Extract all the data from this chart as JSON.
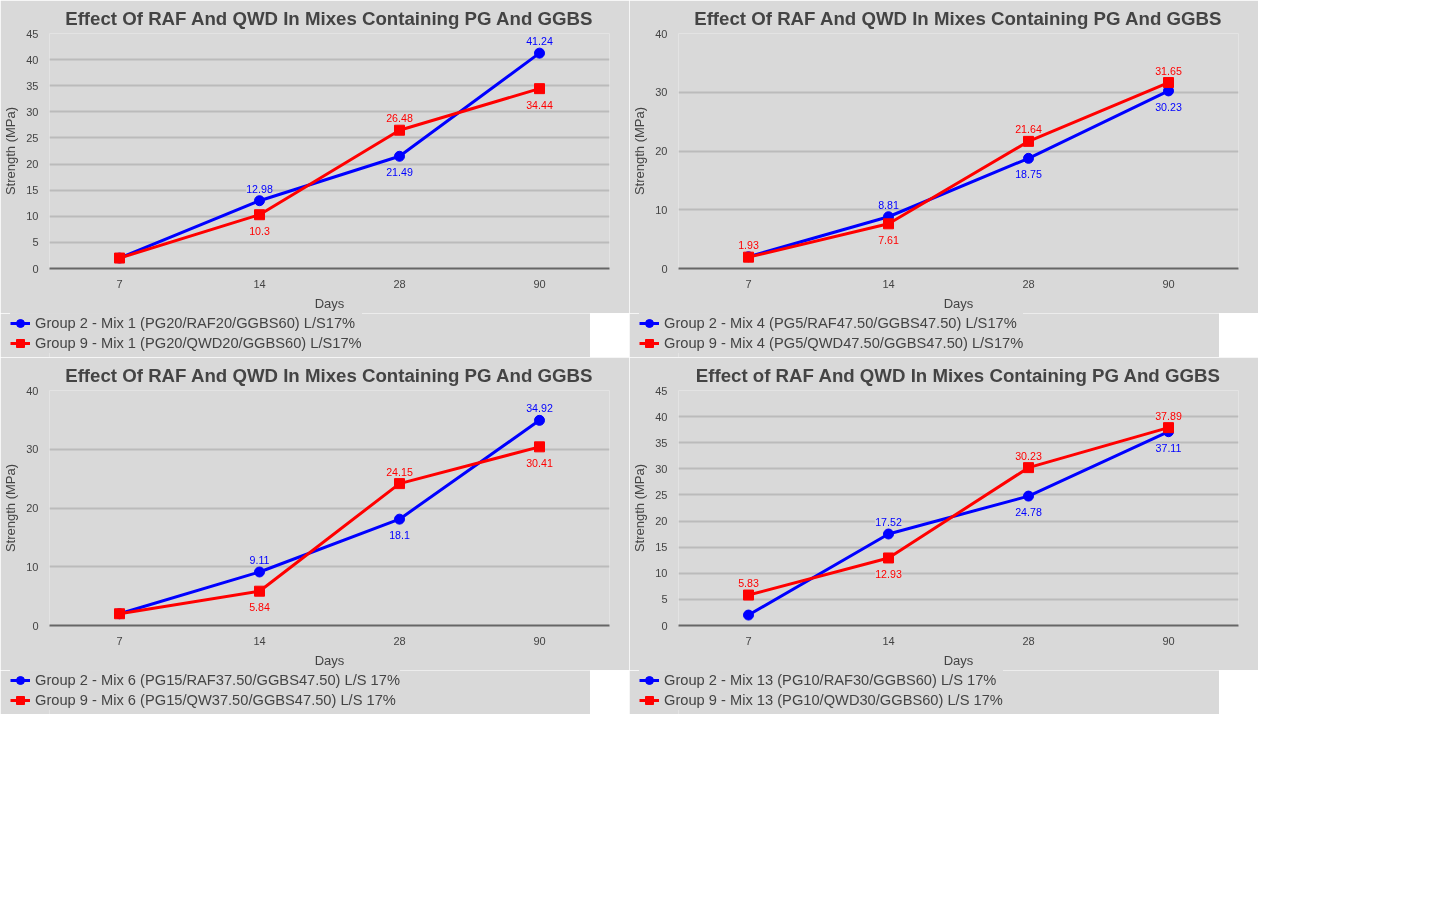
{
  "chart_data": [
    {
      "type": "line",
      "title": "Effect Of RAF And QWD In Mixes Containing PG And GGBS",
      "xlabel": "Days",
      "ylabel": "Strength (MPa)",
      "categories": [
        "7",
        "14",
        "28",
        "90"
      ],
      "ylim": [
        0,
        45
      ],
      "yticks": [
        0,
        5,
        10,
        15,
        20,
        25,
        30,
        35,
        40,
        45
      ],
      "grid": "y",
      "legend": "bottom",
      "series": [
        {
          "name": "Group 2 - Mix 1 (PG20/RAF20/GGBS60) L/S17%",
          "color": "#0000ff",
          "marker": "circle",
          "values": [
            2,
            12.98,
            21.49,
            41.24
          ],
          "value_labels": [
            null,
            "12.98",
            "21.49",
            "41.24"
          ]
        },
        {
          "name": "Group 9 - Mix 1 (PG20/QWD20/GGBS60) L/S17%",
          "color": "#ff0000",
          "marker": "square",
          "values": [
            2,
            10.3,
            26.48,
            34.44
          ],
          "value_labels": [
            null,
            "10.3",
            "26.48",
            "34.44"
          ]
        }
      ]
    },
    {
      "type": "line",
      "title": "Effect Of RAF And QWD In Mixes Containing PG And GGBS",
      "xlabel": "Days",
      "ylabel": "Strength (MPa)",
      "categories": [
        "7",
        "14",
        "28",
        "90"
      ],
      "ylim": [
        0,
        40
      ],
      "yticks": [
        0,
        10,
        20,
        30,
        40
      ],
      "grid": "y",
      "legend": "bottom",
      "series": [
        {
          "name": "Group 2 - Mix 4 (PG5/RAF47.50/GGBS47.50) L/S17%",
          "color": "#0000ff",
          "marker": "circle",
          "values": [
            2,
            8.81,
            18.75,
            30.23
          ],
          "value_labels": [
            null,
            "8.81",
            "18.75",
            "30.23"
          ]
        },
        {
          "name": "Group 9 - Mix 4 (PG5/QWD47.50/GGBS47.50) L/S17%",
          "color": "#ff0000",
          "marker": "square",
          "values": [
            1.93,
            7.61,
            21.64,
            31.65
          ],
          "value_labels": [
            "1.93",
            "7.61",
            "21.64",
            "31.65"
          ]
        }
      ]
    },
    {
      "type": "line",
      "title": "Effect Of RAF And QWD In Mixes Containing PG And GGBS",
      "xlabel": "Days",
      "ylabel": "Strength (MPa)",
      "categories": [
        "7",
        "14",
        "28",
        "90"
      ],
      "ylim": [
        0,
        40
      ],
      "yticks": [
        0,
        10,
        20,
        30,
        40
      ],
      "grid": "y",
      "legend": "bottom",
      "series": [
        {
          "name": "Group 2 - Mix 6 (PG15/RAF37.50/GGBS47.50) L/S 17%",
          "color": "#0000ff",
          "marker": "circle",
          "values": [
            2,
            9.11,
            18.1,
            34.92
          ],
          "value_labels": [
            null,
            "9.11",
            "18.1",
            "34.92"
          ]
        },
        {
          "name": "Group 9 - Mix 6 (PG15/QW37.50/GGBS47.50) L/S 17%",
          "color": "#ff0000",
          "marker": "square",
          "values": [
            2,
            5.84,
            24.15,
            30.41
          ],
          "value_labels": [
            null,
            "5.84",
            "24.15",
            "30.41"
          ]
        }
      ]
    },
    {
      "type": "line",
      "title": "Effect of RAF And QWD In Mixes Containing PG And GGBS",
      "xlabel": "Days",
      "ylabel": "Strength (MPa)",
      "categories": [
        "7",
        "14",
        "28",
        "90"
      ],
      "ylim": [
        0,
        45
      ],
      "yticks": [
        0,
        5,
        10,
        15,
        20,
        25,
        30,
        35,
        40,
        45
      ],
      "grid": "y",
      "legend": "bottom",
      "series": [
        {
          "name": "Group 2 - Mix 13 (PG10/RAF30/GGBS60) L/S 17%",
          "color": "#0000ff",
          "marker": "circle",
          "values": [
            2.0,
            17.52,
            24.78,
            37.11
          ],
          "value_labels": [
            null,
            "17.52",
            "24.78",
            "37.11"
          ]
        },
        {
          "name": "Group 9 - Mix 13 (PG10/QWD30/GGBS60) L/S 17%",
          "color": "#ff0000",
          "marker": "square",
          "values": [
            5.83,
            12.93,
            30.23,
            37.89
          ],
          "value_labels": [
            "5.83",
            "12.93",
            "30.23",
            "37.89"
          ]
        }
      ]
    }
  ]
}
